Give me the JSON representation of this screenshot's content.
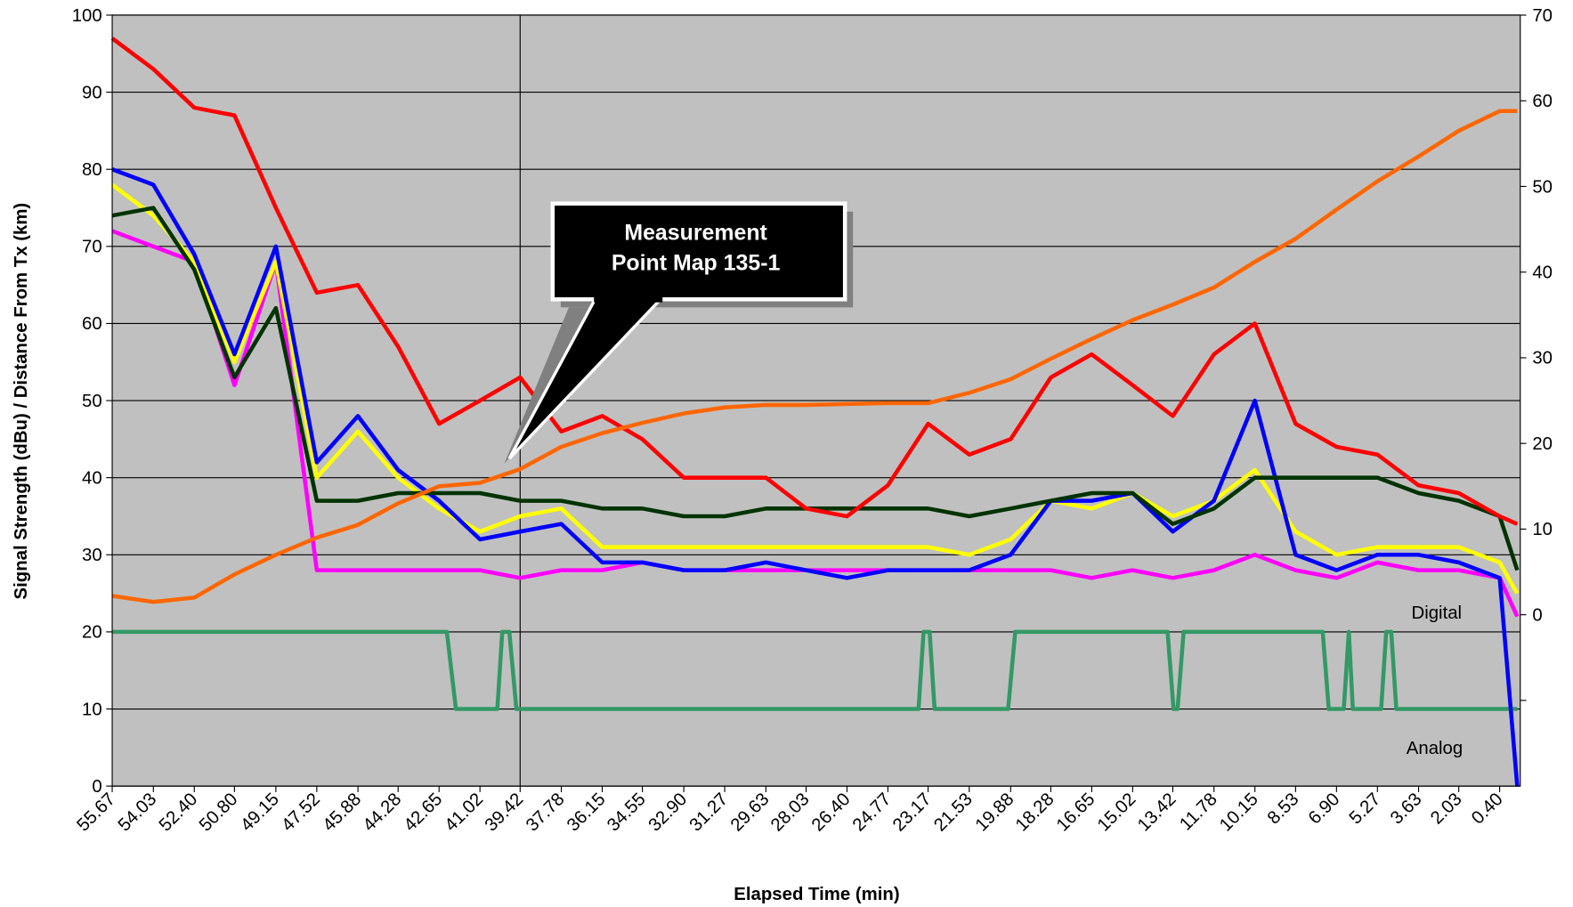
{
  "chart_data": {
    "type": "line",
    "x_label": "Elapsed Time (min)",
    "y_label": "Signal Strength (dBu) / Distance From Tx (km)",
    "xlim": [
      55.67,
      -0.42
    ],
    "xticks": [
      55.67,
      54.03,
      {
        "value": 52.4,
        "label": "52.40"
      },
      {
        "value": 50.8,
        "label": "50.80"
      },
      49.15,
      47.52,
      45.88,
      44.28,
      42.65,
      41.02,
      39.42,
      37.78,
      36.15,
      34.55,
      {
        "value": 32.9,
        "label": "32.90"
      },
      31.27,
      29.63,
      28.03,
      {
        "value": 26.4,
        "label": "26.40"
      },
      24.77,
      23.17,
      21.53,
      19.88,
      18.28,
      16.65,
      15.02,
      13.42,
      11.78,
      10.15,
      8.53,
      {
        "value": 6.9,
        "label": "6.90"
      },
      5.27,
      3.63,
      2.03,
      {
        "value": 0.4,
        "label": "0.40"
      }
    ],
    "ylim": [
      0,
      100
    ],
    "yticks": [
      0,
      10,
      20,
      30,
      40,
      50,
      60,
      70,
      80,
      90,
      100
    ],
    "y2lim": [
      -20,
      70
    ],
    "y2ticks": [
      {
        "value": -10,
        "label": null
      },
      0,
      10,
      20,
      30,
      40,
      50,
      60,
      70
    ],
    "grid": true,
    "background": "#c0c0c0",
    "vline": 39.42,
    "annotations": [
      {
        "text": [
          "Measurement",
          "Point Map 135-1"
        ]
      },
      {
        "text": "Digital"
      },
      {
        "text": "Analog"
      }
    ],
    "x": [
      55.67,
      54.03,
      52.4,
      50.8,
      49.15,
      47.52,
      45.88,
      44.28,
      42.65,
      41.02,
      39.42,
      37.78,
      36.15,
      34.55,
      32.9,
      31.27,
      29.63,
      28.03,
      26.4,
      24.77,
      23.17,
      21.53,
      19.88,
      18.28,
      16.65,
      15.02,
      13.42,
      11.78,
      10.15,
      8.53,
      6.9,
      5.27,
      3.63,
      2.03,
      0.4,
      -0.3
    ],
    "series": [
      {
        "color": "#339966",
        "x": [
          55.67,
          42.34,
          41.98,
          40.33,
          40.13,
          39.85,
          39.57,
          23.55,
          23.35,
          23.11,
          22.91,
          19.98,
          19.7,
          13.63,
          13.39,
          13.23,
          12.99,
          7.45,
          7.21,
          6.61,
          6.41,
          6.25,
          5.12,
          4.92,
          4.72,
          4.52,
          -0.3
        ],
        "values": [
          20,
          20,
          10,
          10,
          20,
          20,
          10,
          10,
          20,
          20,
          10,
          10,
          20,
          20,
          10,
          10,
          20,
          20,
          10,
          10,
          20,
          10,
          10,
          20,
          20,
          10,
          10
        ]
      },
      {
        "color": "#ff00ff",
        "values": [
          72,
          70,
          68,
          52,
          68,
          28,
          28,
          28,
          28,
          28,
          27,
          28,
          28,
          29,
          28,
          28,
          28,
          28,
          28,
          28,
          28,
          28,
          28,
          28,
          27,
          28,
          27,
          28,
          30,
          28,
          27,
          29,
          28,
          28,
          27,
          22
        ]
      },
      {
        "color": "#ffff00",
        "values": [
          78,
          74,
          68,
          55,
          68,
          40,
          46,
          40,
          36,
          33,
          35,
          36,
          31,
          31,
          31,
          31,
          31,
          31,
          31,
          31,
          31,
          30,
          32,
          37,
          36,
          38,
          35,
          37,
          41,
          33,
          30,
          31,
          31,
          31,
          29,
          25
        ]
      },
      {
        "color": "#0000ff",
        "values": [
          80,
          78,
          69,
          56,
          70,
          42,
          48,
          41,
          37,
          32,
          33,
          34,
          29,
          29,
          28,
          28,
          29,
          28,
          27,
          28,
          28,
          28,
          30,
          37,
          37,
          38,
          33,
          37,
          50,
          30,
          28,
          30,
          30,
          29,
          27,
          0
        ]
      },
      {
        "color": "#003300",
        "values": [
          74,
          75,
          67,
          53,
          62,
          37,
          37,
          38,
          38,
          38,
          37,
          37,
          36,
          36,
          35,
          35,
          36,
          36,
          36,
          36,
          36,
          35,
          36,
          37,
          38,
          38,
          34,
          36,
          40,
          40,
          40,
          40,
          38,
          37,
          35,
          28
        ]
      },
      {
        "color": "#ff0000",
        "values": [
          97,
          93,
          88,
          87,
          75,
          64,
          65,
          57,
          47,
          50,
          53,
          46,
          48,
          45,
          40,
          40,
          40,
          36,
          35,
          39,
          47,
          43,
          45,
          53,
          56,
          52,
          48,
          56,
          60,
          47,
          44,
          43,
          39,
          38,
          35,
          34
        ]
      },
      {
        "color": "#ff6600",
        "axis": "y2",
        "values": [
          2.2,
          1.5,
          2,
          4.7,
          7,
          9,
          10.5,
          13,
          15,
          15.4,
          17,
          19.6,
          21.2,
          22.4,
          23.5,
          24.2,
          24.5,
          24.5,
          24.6,
          24.7,
          24.7,
          25.9,
          27.5,
          29.9,
          32.2,
          34.4,
          36.2,
          38.2,
          41.2,
          43.9,
          47.3,
          50.6,
          53.5,
          56.5,
          58.8,
          58.8
        ]
      }
    ]
  }
}
